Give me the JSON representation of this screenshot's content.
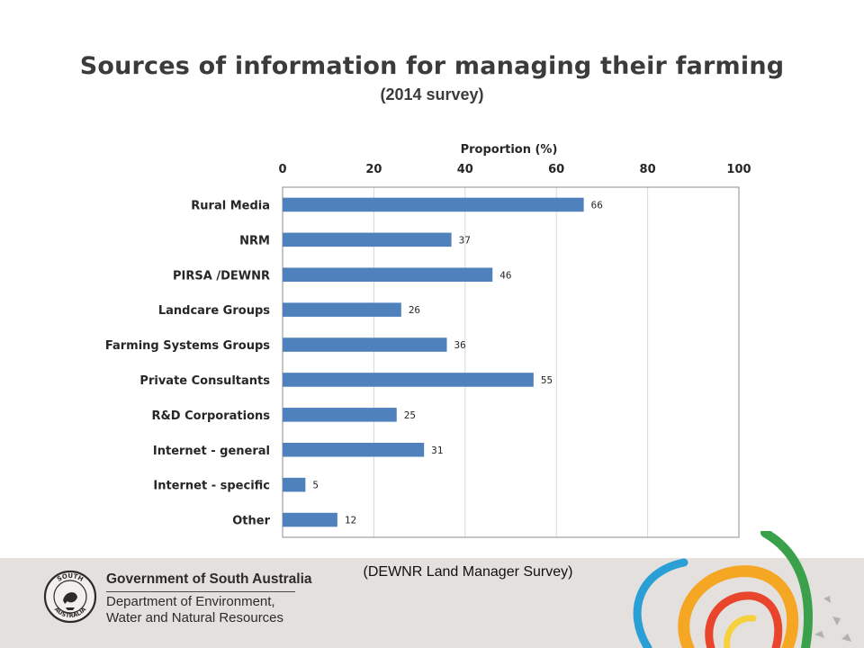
{
  "title": "Sources of information for managing their farming",
  "subtitle": "(2014 survey)",
  "source_note": "(DEWNR Land Manager Survey)",
  "footer": {
    "crest_text": "SOUTH AUSTRALIA",
    "government": "Government of South Australia",
    "department_line1": "Department of Environment,",
    "department_line2": "Water and Natural Resources"
  },
  "colors": {
    "bar": "#4f81bd",
    "title": "#3b3b3b",
    "footer_band": "#e3e0dd"
  },
  "chart_data": {
    "type": "bar",
    "orientation": "horizontal",
    "title": "Sources of information for managing their farming",
    "subtitle": "(2014 survey)",
    "xlabel": "Proportion (%)",
    "ylabel": "",
    "x_axis_position": "top",
    "xlim": [
      0,
      100
    ],
    "xticks": [
      0,
      20,
      40,
      60,
      80,
      100
    ],
    "grid": "vertical",
    "legend": "none",
    "categories": [
      "Rural Media",
      "NRM",
      "PIRSA /DEWNR",
      "Landcare Groups",
      "Farming Systems Groups",
      "Private Consultants",
      "R&D Corporations",
      "Internet - general",
      "Internet - specific",
      "Other"
    ],
    "values": [
      66,
      37,
      46,
      26,
      36,
      55,
      25,
      31,
      5,
      12
    ]
  }
}
